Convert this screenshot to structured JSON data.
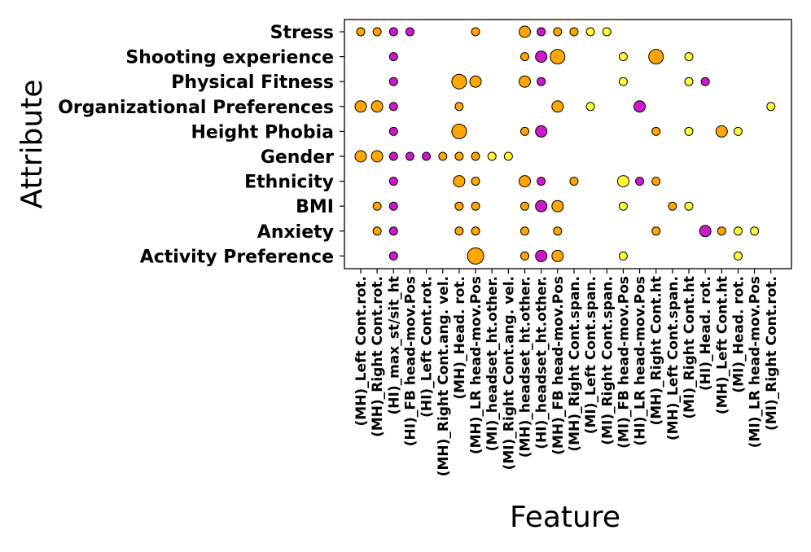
{
  "chart_data": {
    "type": "scatter",
    "title": "",
    "xlabel": "Feature",
    "ylabel": "Attribute",
    "grid": false,
    "legend": "none",
    "attributes_top_to_bottom": [
      "Stress",
      "Shooting experience",
      "Physical Fitness",
      "Organizational Preferences",
      "Height Phobia",
      "Gender",
      "Ethnicity",
      "BMI",
      "Anxiety",
      "Activity Preference"
    ],
    "features": [
      "(MH)_Left Cont.rot.",
      "(MH)_Right Cont.rot.",
      "(HI)_max_st/sit_ht",
      "(HI)_FB head-mov.Pos",
      "(HI)_Left Cont.rot.",
      "(MH)_Right Cont.ang. vel.",
      "(MH)_Head. rot.",
      "(MH)_LR head-mov.Pos",
      "(MI)_headset_ht.other.",
      "(MI)_Right Cont.ang. vel.",
      "(MH)_headset_ht.other.",
      "(HI)_headset_ht.other.",
      "(MH)_FB head-mov.Pos",
      "(MH)_Right Cont.span.",
      "(MI)_Left Cont.span.",
      "(MI)_Right Cont.span.",
      "(MI)_FB head-mov.Pos",
      "(HI)_LR head-mov.Pos",
      "(MH)_Right Cont.ht",
      "(MH)_Left Cont.span.",
      "(MI)_Right Cont.ht",
      "(HI)_Head. rot.",
      "(MH)_Left Cont.ht",
      "(MI)_Head. rot.",
      "(MI)_LR head-mov.Pos",
      "(MI)_Right Cont.rot."
    ],
    "point_encoding": "each point: [attribute_index, feature_index, size_level 1-4, color_group]",
    "color_groups": {
      "MH": "#ffa500",
      "HI": "#cc19cc",
      "MI": "#ffff33"
    },
    "points": [
      [
        0,
        0,
        1,
        "MH"
      ],
      [
        0,
        1,
        1,
        "MH"
      ],
      [
        0,
        2,
        1,
        "HI"
      ],
      [
        0,
        3,
        1,
        "HI"
      ],
      [
        0,
        7,
        1,
        "MH"
      ],
      [
        0,
        10,
        2,
        "MH"
      ],
      [
        0,
        11,
        1,
        "HI"
      ],
      [
        0,
        12,
        1,
        "MH"
      ],
      [
        0,
        13,
        1,
        "MH"
      ],
      [
        0,
        14,
        1,
        "MI"
      ],
      [
        0,
        15,
        1,
        "MI"
      ],
      [
        1,
        2,
        1,
        "HI"
      ],
      [
        1,
        10,
        1,
        "MH"
      ],
      [
        1,
        11,
        2,
        "HI"
      ],
      [
        1,
        12,
        3,
        "MH"
      ],
      [
        1,
        16,
        1,
        "MI"
      ],
      [
        1,
        18,
        3,
        "MH"
      ],
      [
        1,
        20,
        1,
        "MI"
      ],
      [
        2,
        2,
        1,
        "HI"
      ],
      [
        2,
        6,
        3,
        "MH"
      ],
      [
        2,
        7,
        2,
        "MH"
      ],
      [
        2,
        10,
        2,
        "MH"
      ],
      [
        2,
        11,
        1,
        "HI"
      ],
      [
        2,
        16,
        1,
        "MI"
      ],
      [
        2,
        20,
        1,
        "MI"
      ],
      [
        2,
        21,
        1,
        "HI"
      ],
      [
        3,
        0,
        2,
        "MH"
      ],
      [
        3,
        1,
        2,
        "MH"
      ],
      [
        3,
        2,
        1,
        "HI"
      ],
      [
        3,
        6,
        1,
        "MH"
      ],
      [
        3,
        12,
        2,
        "MH"
      ],
      [
        3,
        14,
        1,
        "MI"
      ],
      [
        3,
        17,
        2,
        "HI"
      ],
      [
        3,
        25,
        1,
        "MI"
      ],
      [
        4,
        2,
        1,
        "HI"
      ],
      [
        4,
        6,
        3,
        "MH"
      ],
      [
        4,
        10,
        1,
        "MH"
      ],
      [
        4,
        11,
        2,
        "HI"
      ],
      [
        4,
        18,
        1,
        "MH"
      ],
      [
        4,
        20,
        1,
        "MI"
      ],
      [
        4,
        22,
        2,
        "MH"
      ],
      [
        4,
        23,
        1,
        "MI"
      ],
      [
        5,
        0,
        2,
        "MH"
      ],
      [
        5,
        1,
        2,
        "MH"
      ],
      [
        5,
        2,
        1,
        "HI"
      ],
      [
        5,
        3,
        1,
        "HI"
      ],
      [
        5,
        4,
        1,
        "HI"
      ],
      [
        5,
        5,
        1,
        "MH"
      ],
      [
        5,
        6,
        1,
        "MH"
      ],
      [
        5,
        7,
        1,
        "MH"
      ],
      [
        5,
        8,
        1,
        "MI"
      ],
      [
        5,
        9,
        1,
        "MI"
      ],
      [
        6,
        2,
        1,
        "HI"
      ],
      [
        6,
        6,
        2,
        "MH"
      ],
      [
        6,
        7,
        1,
        "MH"
      ],
      [
        6,
        10,
        2,
        "MH"
      ],
      [
        6,
        11,
        1,
        "HI"
      ],
      [
        6,
        13,
        1,
        "MH"
      ],
      [
        6,
        16,
        2,
        "MI"
      ],
      [
        6,
        17,
        1,
        "HI"
      ],
      [
        6,
        18,
        1,
        "MH"
      ],
      [
        7,
        1,
        1,
        "MH"
      ],
      [
        7,
        2,
        1,
        "HI"
      ],
      [
        7,
        6,
        1,
        "MH"
      ],
      [
        7,
        7,
        1,
        "MH"
      ],
      [
        7,
        10,
        1,
        "MH"
      ],
      [
        7,
        11,
        2,
        "HI"
      ],
      [
        7,
        12,
        2,
        "MH"
      ],
      [
        7,
        16,
        1,
        "MI"
      ],
      [
        7,
        19,
        1,
        "MH"
      ],
      [
        7,
        20,
        1,
        "MI"
      ],
      [
        8,
        1,
        1,
        "MH"
      ],
      [
        8,
        2,
        1,
        "HI"
      ],
      [
        8,
        6,
        1,
        "MH"
      ],
      [
        8,
        7,
        1,
        "MH"
      ],
      [
        8,
        10,
        1,
        "MH"
      ],
      [
        8,
        12,
        1,
        "MH"
      ],
      [
        8,
        18,
        1,
        "MH"
      ],
      [
        8,
        21,
        2,
        "HI"
      ],
      [
        8,
        22,
        1,
        "MH"
      ],
      [
        8,
        23,
        1,
        "MI"
      ],
      [
        8,
        24,
        1,
        "MI"
      ],
      [
        9,
        2,
        1,
        "HI"
      ],
      [
        9,
        7,
        4,
        "MH"
      ],
      [
        9,
        10,
        1,
        "MH"
      ],
      [
        9,
        11,
        2,
        "HI"
      ],
      [
        9,
        12,
        2,
        "MH"
      ],
      [
        9,
        16,
        1,
        "MI"
      ],
      [
        9,
        23,
        1,
        "MI"
      ]
    ]
  }
}
